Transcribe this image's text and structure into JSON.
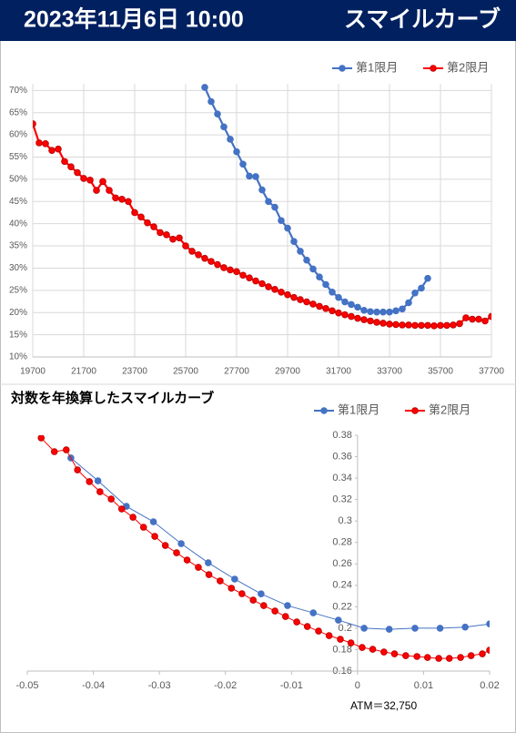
{
  "header": {
    "date": "2023年11月6日 10:00",
    "title": "スマイルカーブ"
  },
  "chart_data": [
    {
      "type": "line",
      "series": [
        {
          "name": "第1限月",
          "color": "#4472c4",
          "x": [
            26450,
            26700,
            26950,
            27200,
            27450,
            27700,
            27950,
            28200,
            28450,
            28700,
            28950,
            29200,
            29450,
            29700,
            29950,
            30200,
            30450,
            30700,
            30950,
            31200,
            31450,
            31700,
            31950,
            32200,
            32450,
            32700,
            32950,
            33200,
            33450,
            33700,
            33950,
            34200,
            34450,
            34700,
            34950,
            35200
          ],
          "values": [
            70.7,
            67.5,
            64.7,
            61.8,
            59,
            56.2,
            53.4,
            50.7,
            50.6,
            47.6,
            45,
            43.7,
            40.7,
            39,
            36,
            33.8,
            31.8,
            29.8,
            28,
            26.3,
            24.6,
            23.4,
            22.4,
            21.8,
            21.2,
            20.5,
            20.2,
            20.1,
            20.1,
            20.1,
            20.4,
            20.8,
            22.2,
            24.4,
            25.5,
            27.7
          ]
        },
        {
          "name": "第2限月",
          "color": "#ff0000",
          "x": [
            19700,
            19950,
            20200,
            20450,
            20700,
            20950,
            21200,
            21450,
            21700,
            21950,
            22200,
            22450,
            22700,
            22950,
            23200,
            23450,
            23700,
            23950,
            24200,
            24450,
            24700,
            24950,
            25200,
            25450,
            25700,
            25950,
            26200,
            26450,
            26700,
            26950,
            27200,
            27450,
            27700,
            27950,
            28200,
            28450,
            28700,
            28950,
            29200,
            29450,
            29700,
            29950,
            30200,
            30450,
            30700,
            30950,
            31200,
            31450,
            31700,
            31950,
            32200,
            32450,
            32700,
            32950,
            33200,
            33450,
            33700,
            33950,
            34200,
            34450,
            34700,
            34950,
            35200,
            35450,
            35700,
            35950,
            36200,
            36450,
            36700,
            36950,
            37200,
            37450,
            37700
          ],
          "values": [
            62.5,
            58.2,
            58,
            56.5,
            56.8,
            54,
            52.8,
            51.5,
            50.2,
            49.8,
            47.5,
            49.5,
            47.5,
            45.8,
            45.5,
            45,
            42.5,
            41.5,
            40.2,
            39.3,
            38,
            37.5,
            36.5,
            36.8,
            35,
            33.8,
            33,
            32.2,
            31.5,
            30.8,
            30.1,
            29.6,
            29.2,
            28.4,
            27.8,
            27.1,
            26.5,
            25.8,
            25.2,
            24.6,
            24,
            23.4,
            22.9,
            22.4,
            21.9,
            21.4,
            20.9,
            20.4,
            19.9,
            19.5,
            19.1,
            18.7,
            18.4,
            18.1,
            17.8,
            17.6,
            17.4,
            17.3,
            17.2,
            17.2,
            17.1,
            17.1,
            17.1,
            17,
            17.1,
            17.1,
            17.2,
            17.5,
            18.8,
            18.5,
            18.5,
            18.1,
            19.1
          ]
        }
      ],
      "xlim": [
        19700,
        37700
      ],
      "xticks": [
        19700,
        21700,
        23700,
        25700,
        27700,
        29700,
        31700,
        33700,
        35700,
        37700
      ],
      "ylim": [
        10,
        71.5
      ],
      "yticks": [
        {
          "value": 10,
          "label": "10%"
        },
        {
          "value": 15,
          "label": "15%"
        },
        {
          "value": 20,
          "label": "20%"
        },
        {
          "value": 25,
          "label": "25%"
        },
        {
          "value": 30,
          "label": "30%"
        },
        {
          "value": 35,
          "label": "35%"
        },
        {
          "value": 40,
          "label": "40%"
        },
        {
          "value": 45,
          "label": "45%"
        },
        {
          "value": 50,
          "label": "50%"
        },
        {
          "value": 55,
          "label": "55%"
        },
        {
          "value": 60,
          "label": "60%"
        },
        {
          "value": 65,
          "label": "65%"
        },
        {
          "value": 70,
          "label": "70%"
        }
      ],
      "grid": true,
      "legend": "top-right"
    },
    {
      "type": "line",
      "title": "対数を年換算したスマイルカーブ",
      "series": [
        {
          "name": "第1限月",
          "color": "#4472c4",
          "x": [
            -0.0434,
            -0.0393,
            -0.035,
            -0.0309,
            -0.0267,
            -0.0226,
            -0.0186,
            -0.0146,
            -0.0106,
            -0.0067,
            -0.0029,
            0.001,
            0.0048,
            0.0087,
            0.0125,
            0.0163,
            0.02
          ],
          "values": [
            0.3588,
            0.3375,
            0.3137,
            0.2993,
            0.2789,
            0.261,
            0.2458,
            0.232,
            0.2211,
            0.2143,
            0.2075,
            0.2,
            0.199,
            0.2,
            0.2,
            0.201,
            0.204
          ]
        },
        {
          "name": "第2限月",
          "color": "#ff0000",
          "x": [
            -0.0479,
            -0.0459,
            -0.0441,
            -0.0424,
            -0.0406,
            -0.039,
            -0.0373,
            -0.0357,
            -0.034,
            -0.0324,
            -0.0307,
            -0.0291,
            -0.0274,
            -0.0258,
            -0.0241,
            -0.0225,
            -0.0208,
            -0.0191,
            -0.0175,
            -0.0158,
            -0.0142,
            -0.0125,
            -0.0109,
            -0.0092,
            -0.0076,
            -0.0059,
            -0.0043,
            -0.0026,
            -0.001,
            0.0007,
            0.0023,
            0.004,
            0.0056,
            0.0073,
            0.009,
            0.0106,
            0.0123,
            0.0139,
            0.0156,
            0.0172,
            0.0189,
            0.02
          ],
          "values": [
            0.3775,
            0.3647,
            0.3664,
            0.3477,
            0.3367,
            0.3273,
            0.3205,
            0.3112,
            0.3035,
            0.2942,
            0.2857,
            0.2772,
            0.2704,
            0.2636,
            0.2568,
            0.25,
            0.2441,
            0.2373,
            0.2322,
            0.2262,
            0.2211,
            0.216,
            0.2109,
            0.2058,
            0.2016,
            0.1973,
            0.1931,
            0.1897,
            0.1863,
            0.182,
            0.1803,
            0.1778,
            0.1761,
            0.1744,
            0.1736,
            0.1727,
            0.1718,
            0.1718,
            0.1727,
            0.1744,
            0.1761,
            0.1795
          ]
        }
      ],
      "xlim": [
        -0.05,
        0.02
      ],
      "xticks": [
        -0.05,
        -0.04,
        -0.03,
        -0.02,
        -0.01,
        0,
        0.01,
        0.02
      ],
      "ylim": [
        0.16,
        0.38
      ],
      "yticks": [
        0.16,
        0.18,
        0.2,
        0.22,
        0.24,
        0.26,
        0.28,
        0.3,
        0.32,
        0.34,
        0.36,
        0.38
      ],
      "grid": false,
      "legend": "top-right",
      "annotation": "ATM＝32,750"
    }
  ]
}
